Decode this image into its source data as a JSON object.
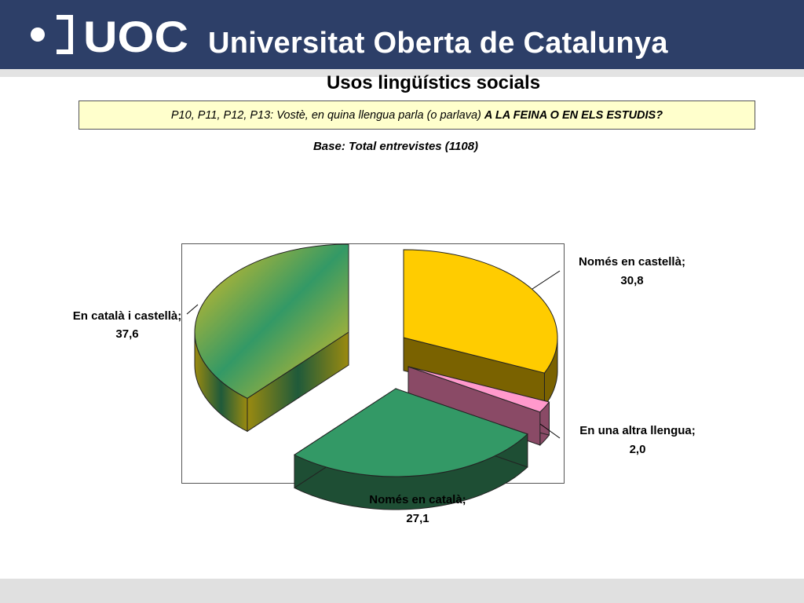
{
  "header": {
    "logo_text": "UOC",
    "university_name": "Universitat Oberta de Catalunya",
    "background_color": "#2d3f68"
  },
  "slide": {
    "title": "Usos lingüístics socials",
    "question_prefix": "P10, P11, P12, P13: Vostè, en quina llengua parla (o parlava) ",
    "question_emphasis": "A LA FEINA O EN ELS ESTUDIS?",
    "base": "Base: Total entrevistes (1108)"
  },
  "chart_data": {
    "type": "pie",
    "style": "3d-exploded",
    "value_decimal_separator": ",",
    "slices": [
      {
        "label": "Només en castellà",
        "value": 30.8,
        "display": "30,8",
        "color": "#ffcc00"
      },
      {
        "label": "En una altra llengua",
        "value": 2.0,
        "display": "2,0",
        "color": "#ff99cc"
      },
      {
        "label": "Només en català",
        "value": 27.1,
        "display": "27,1",
        "color": "#339966"
      },
      {
        "label": "En català i castellà",
        "value": 37.6,
        "display": "37,6",
        "color": "#339966",
        "gradient_color": "#ffcc00"
      }
    ]
  }
}
